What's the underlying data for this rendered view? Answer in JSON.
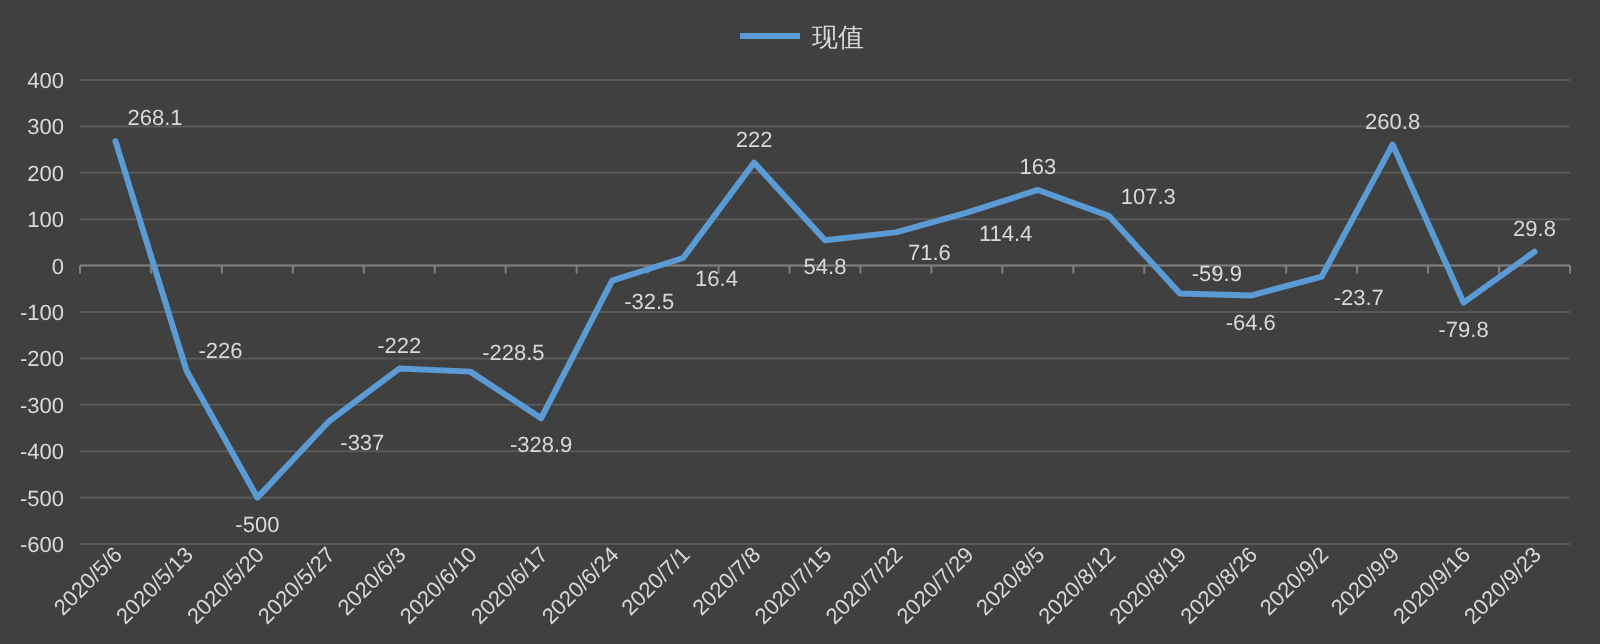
{
  "chart_data": {
    "type": "line",
    "categories": [
      "2020/5/6",
      "2020/5/13",
      "2020/5/20",
      "2020/5/27",
      "2020/6/3",
      "2020/6/10",
      "2020/6/17",
      "2020/6/24",
      "2020/7/1",
      "2020/7/8",
      "2020/7/15",
      "2020/7/22",
      "2020/7/29",
      "2020/8/5",
      "2020/8/12",
      "2020/8/19",
      "2020/8/26",
      "2020/9/2",
      "2020/9/9",
      "2020/9/16",
      "2020/9/23"
    ],
    "series": [
      {
        "name": "现值",
        "color": "#5b9bd5",
        "values": [
          268.1,
          -226,
          -500,
          -337,
          -222,
          -228.5,
          -328.9,
          -32.5,
          16.4,
          222,
          54.8,
          71.6,
          114.4,
          163,
          107.3,
          -59.9,
          -64.6,
          -23.7,
          260.8,
          -79.8,
          29.8
        ]
      }
    ],
    "ylim": [
      -600,
      400
    ],
    "yticks": [
      -600,
      -500,
      -400,
      -300,
      -200,
      -100,
      0,
      100,
      200,
      300,
      400
    ],
    "grid": "y",
    "legend": "top",
    "data_labels": true,
    "marker": "none",
    "line_style": "solid"
  }
}
